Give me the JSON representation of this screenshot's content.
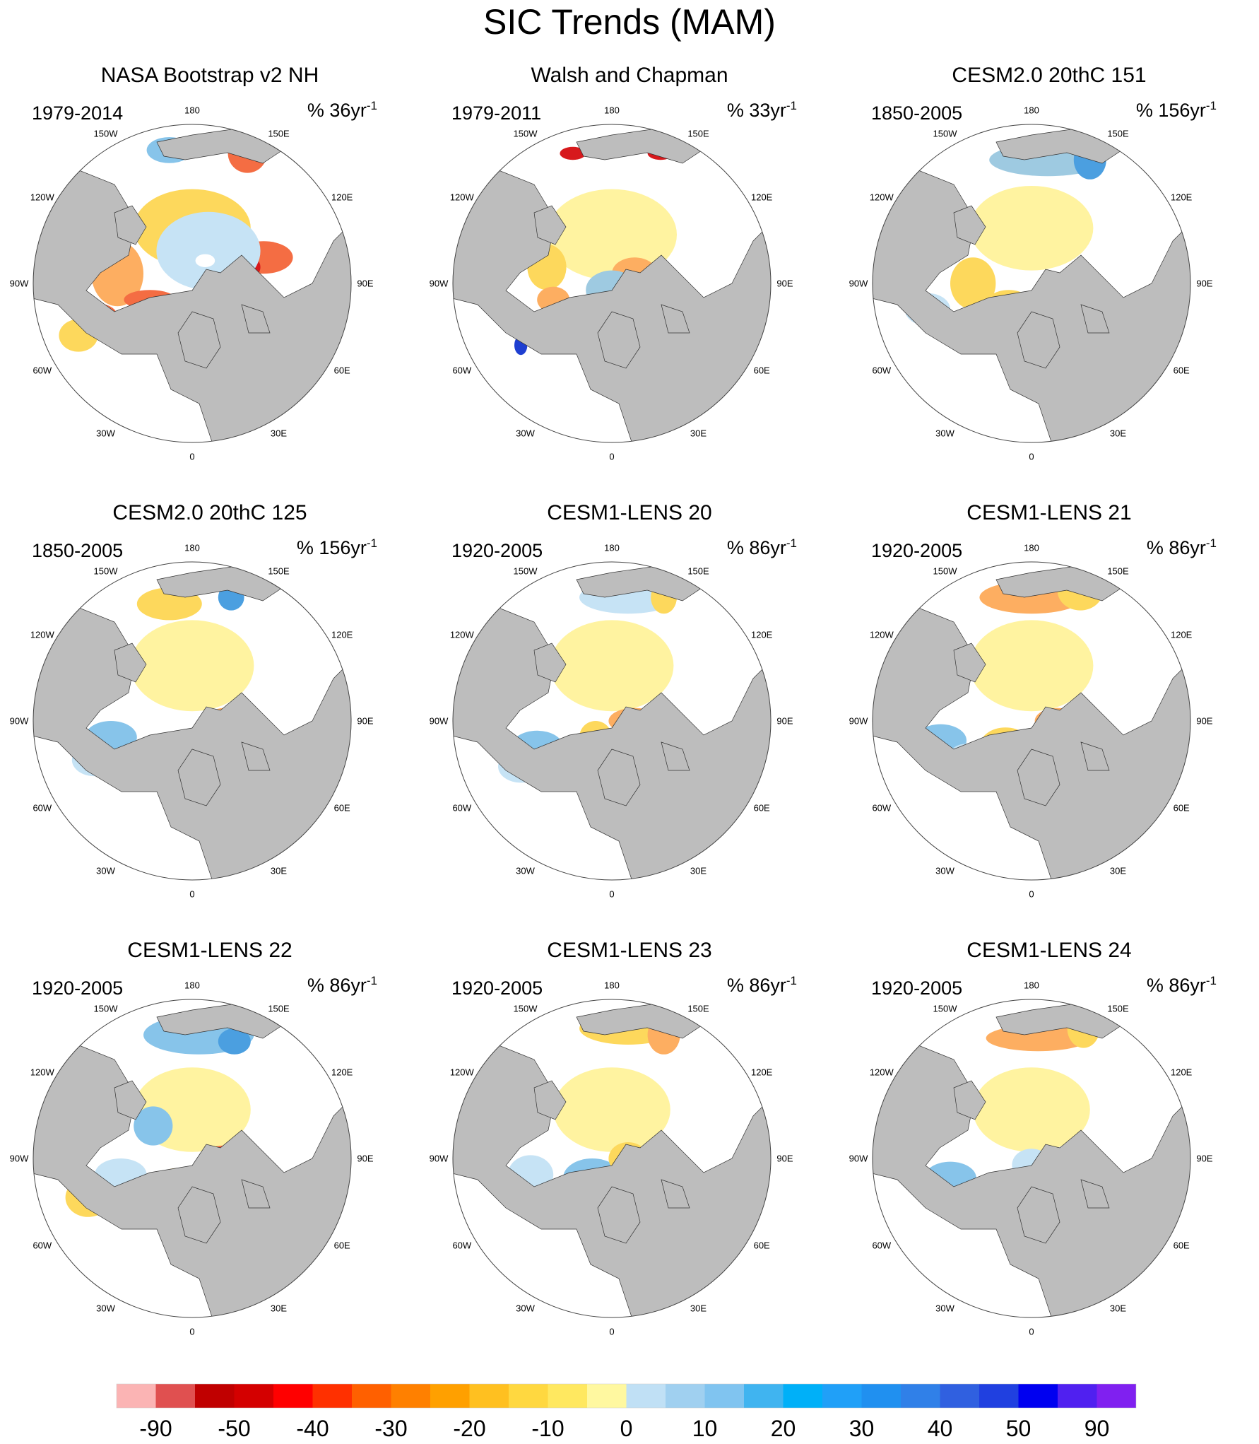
{
  "figure_title": "SIC Trends (MAM)",
  "panels": [
    {
      "title": "NASA Bootstrap v2 NH",
      "period": "1979-2014",
      "units_prefix": "% 36yr",
      "units_exp": "-1",
      "blobs": [
        [
          "#f46d43",
          0.72,
          0.42,
          0.09,
          0.05
        ],
        [
          "#d7191c",
          0.66,
          0.45,
          0.05,
          0.04
        ],
        [
          "#fdd85c",
          0.5,
          0.33,
          0.18,
          0.12
        ],
        [
          "#c6e3f5",
          0.55,
          0.4,
          0.16,
          0.12
        ],
        [
          "#ffffff",
          0.54,
          0.43,
          0.03,
          0.02
        ],
        [
          "#fdae61",
          0.27,
          0.47,
          0.08,
          0.1
        ],
        [
          "#f46d43",
          0.2,
          0.6,
          0.07,
          0.04
        ],
        [
          "#f46d43",
          0.37,
          0.55,
          0.08,
          0.03
        ],
        [
          "#fdd85c",
          0.15,
          0.66,
          0.06,
          0.05
        ],
        [
          "#87c4ea",
          0.43,
          0.09,
          0.07,
          0.04
        ],
        [
          "#f46d43",
          0.67,
          0.1,
          0.06,
          0.06
        ],
        [
          "#d7191c",
          0.57,
          0.67,
          0.02,
          0.03
        ]
      ]
    },
    {
      "title": "Walsh and Chapman",
      "period": "1979-2011",
      "units_prefix": "% 33yr",
      "units_exp": "-1",
      "blobs": [
        [
          "#fff3a0",
          0.5,
          0.35,
          0.2,
          0.14
        ],
        [
          "#fdae61",
          0.57,
          0.47,
          0.07,
          0.05
        ],
        [
          "#d7191c",
          0.63,
          0.49,
          0.03,
          0.03
        ],
        [
          "#fdd85c",
          0.3,
          0.45,
          0.06,
          0.07
        ],
        [
          "#fdae61",
          0.32,
          0.55,
          0.05,
          0.04
        ],
        [
          "#4b7fdf",
          0.24,
          0.63,
          0.05,
          0.04
        ],
        [
          "#9ecae1",
          0.5,
          0.52,
          0.08,
          0.06
        ],
        [
          "#d7191c",
          0.38,
          0.1,
          0.04,
          0.02
        ],
        [
          "#d7191c",
          0.65,
          0.1,
          0.04,
          0.02
        ],
        [
          "#1e3fd1",
          0.22,
          0.69,
          0.02,
          0.03
        ]
      ]
    },
    {
      "title": "CESM2.0 20thC 151",
      "period": "1850-2005",
      "units_prefix": "% 156yr",
      "units_exp": "-1",
      "blobs": [
        [
          "#fff3a0",
          0.5,
          0.33,
          0.19,
          0.13
        ],
        [
          "#9ecae1",
          0.55,
          0.12,
          0.18,
          0.05
        ],
        [
          "#4b9fe0",
          0.68,
          0.12,
          0.05,
          0.06
        ],
        [
          "#fdd85c",
          0.32,
          0.5,
          0.07,
          0.08
        ],
        [
          "#fdae61",
          0.62,
          0.5,
          0.06,
          0.04
        ],
        [
          "#fdd85c",
          0.43,
          0.58,
          0.08,
          0.06
        ],
        [
          "#c6e3f5",
          0.18,
          0.58,
          0.07,
          0.05
        ],
        [
          "#fdd85c",
          0.58,
          0.67,
          0.03,
          0.03
        ]
      ]
    },
    {
      "title": "CESM2.0 20thC 125",
      "period": "1850-2005",
      "units_prefix": "% 156yr",
      "units_exp": "-1",
      "blobs": [
        [
          "#fff3a0",
          0.5,
          0.33,
          0.19,
          0.14
        ],
        [
          "#fdae61",
          0.6,
          0.5,
          0.06,
          0.04
        ],
        [
          "#fdd85c",
          0.4,
          0.6,
          0.08,
          0.06
        ],
        [
          "#87c4ea",
          0.25,
          0.55,
          0.08,
          0.05
        ],
        [
          "#c6e3f5",
          0.2,
          0.62,
          0.07,
          0.05
        ],
        [
          "#fdd85c",
          0.43,
          0.14,
          0.1,
          0.05
        ],
        [
          "#4b9fe0",
          0.62,
          0.12,
          0.04,
          0.04
        ],
        [
          "#fdd85c",
          0.58,
          0.68,
          0.03,
          0.03
        ]
      ]
    },
    {
      "title": "CESM1-LENS 20",
      "period": "1920-2005",
      "units_prefix": "% 86yr",
      "units_exp": "-1",
      "blobs": [
        [
          "#fff3a0",
          0.5,
          0.33,
          0.19,
          0.14
        ],
        [
          "#fdae61",
          0.57,
          0.5,
          0.08,
          0.04
        ],
        [
          "#c6e3f5",
          0.55,
          0.12,
          0.15,
          0.05
        ],
        [
          "#fdd85c",
          0.66,
          0.12,
          0.04,
          0.05
        ],
        [
          "#87c4ea",
          0.27,
          0.58,
          0.08,
          0.05
        ],
        [
          "#c6e3f5",
          0.22,
          0.64,
          0.07,
          0.05
        ],
        [
          "#fdd85c",
          0.45,
          0.55,
          0.05,
          0.05
        ]
      ]
    },
    {
      "title": "CESM1-LENS 21",
      "period": "1920-2005",
      "units_prefix": "% 86yr",
      "units_exp": "-1",
      "blobs": [
        [
          "#fff3a0",
          0.5,
          0.33,
          0.19,
          0.14
        ],
        [
          "#fdae61",
          0.5,
          0.12,
          0.16,
          0.05
        ],
        [
          "#fdd85c",
          0.65,
          0.1,
          0.07,
          0.06
        ],
        [
          "#fdae61",
          0.58,
          0.5,
          0.07,
          0.04
        ],
        [
          "#fdd85c",
          0.42,
          0.58,
          0.08,
          0.06
        ],
        [
          "#87c4ea",
          0.22,
          0.56,
          0.08,
          0.05
        ],
        [
          "#c6e3f5",
          0.3,
          0.62,
          0.06,
          0.05
        ]
      ]
    },
    {
      "title": "CESM1-LENS 22",
      "period": "1920-2005",
      "units_prefix": "% 86yr",
      "units_exp": "-1",
      "blobs": [
        [
          "#fff3a0",
          0.5,
          0.35,
          0.18,
          0.13
        ],
        [
          "#87c4ea",
          0.52,
          0.12,
          0.17,
          0.06
        ],
        [
          "#4b9fe0",
          0.63,
          0.14,
          0.05,
          0.04
        ],
        [
          "#f46d43",
          0.6,
          0.5,
          0.07,
          0.04
        ],
        [
          "#fdd85c",
          0.45,
          0.58,
          0.06,
          0.05
        ],
        [
          "#c6e3f5",
          0.28,
          0.55,
          0.08,
          0.05
        ],
        [
          "#fdd85c",
          0.18,
          0.62,
          0.07,
          0.06
        ],
        [
          "#87c4ea",
          0.38,
          0.4,
          0.06,
          0.06
        ]
      ]
    },
    {
      "title": "CESM1-LENS 23",
      "period": "1920-2005",
      "units_prefix": "% 86yr",
      "units_exp": "-1",
      "blobs": [
        [
          "#fff3a0",
          0.5,
          0.35,
          0.18,
          0.13
        ],
        [
          "#fdd85c",
          0.55,
          0.1,
          0.15,
          0.05
        ],
        [
          "#fdae61",
          0.66,
          0.12,
          0.05,
          0.06
        ],
        [
          "#87c4ea",
          0.44,
          0.56,
          0.09,
          0.06
        ],
        [
          "#4b9fe0",
          0.4,
          0.58,
          0.04,
          0.04
        ],
        [
          "#c6e3f5",
          0.25,
          0.55,
          0.07,
          0.06
        ],
        [
          "#fdd85c",
          0.55,
          0.5,
          0.06,
          0.05
        ]
      ]
    },
    {
      "title": "CESM1-LENS 24",
      "period": "1920-2005",
      "units_prefix": "% 86yr",
      "units_exp": "-1",
      "blobs": [
        [
          "#fff3a0",
          0.5,
          0.35,
          0.18,
          0.13
        ],
        [
          "#fdae61",
          0.52,
          0.13,
          0.16,
          0.04
        ],
        [
          "#fdd85c",
          0.66,
          0.1,
          0.05,
          0.06
        ],
        [
          "#fdae61",
          0.6,
          0.52,
          0.05,
          0.04
        ],
        [
          "#f46d43",
          0.4,
          0.6,
          0.05,
          0.04
        ],
        [
          "#87c4ea",
          0.25,
          0.56,
          0.08,
          0.05
        ],
        [
          "#c6e3f5",
          0.3,
          0.64,
          0.06,
          0.05
        ],
        [
          "#c6e3f5",
          0.5,
          0.52,
          0.06,
          0.05
        ]
      ]
    }
  ],
  "map_labels": {
    "top": "180",
    "bottom": "0",
    "l_150w": "150W",
    "r_150e": "150E",
    "l_120w": "120W",
    "r_120e": "120E",
    "l_90w": "90W",
    "r_90e": "90E",
    "l_60w": "60W",
    "r_60e": "60E",
    "l_30w": "30W",
    "r_30e": "30E"
  },
  "colorbar": {
    "colors": [
      "#fbb4b4",
      "#e05050",
      "#c00000",
      "#d40000",
      "#ff0000",
      "#ff3000",
      "#ff6000",
      "#ff8000",
      "#ffa000",
      "#ffc020",
      "#ffd840",
      "#ffe860",
      "#fff8a0",
      "#c0e0f5",
      "#a0d0f0",
      "#80c4f0",
      "#40b4f0",
      "#00b0f8",
      "#20a0f8",
      "#2090f0",
      "#3080e8",
      "#3060e0",
      "#2040e0",
      "#0000f0",
      "#5020f0",
      "#8020f0"
    ],
    "labels": [
      "-90",
      "-50",
      "-40",
      "-30",
      "-20",
      "-10",
      "0",
      "10",
      "20",
      "30",
      "40",
      "50",
      "90"
    ]
  }
}
